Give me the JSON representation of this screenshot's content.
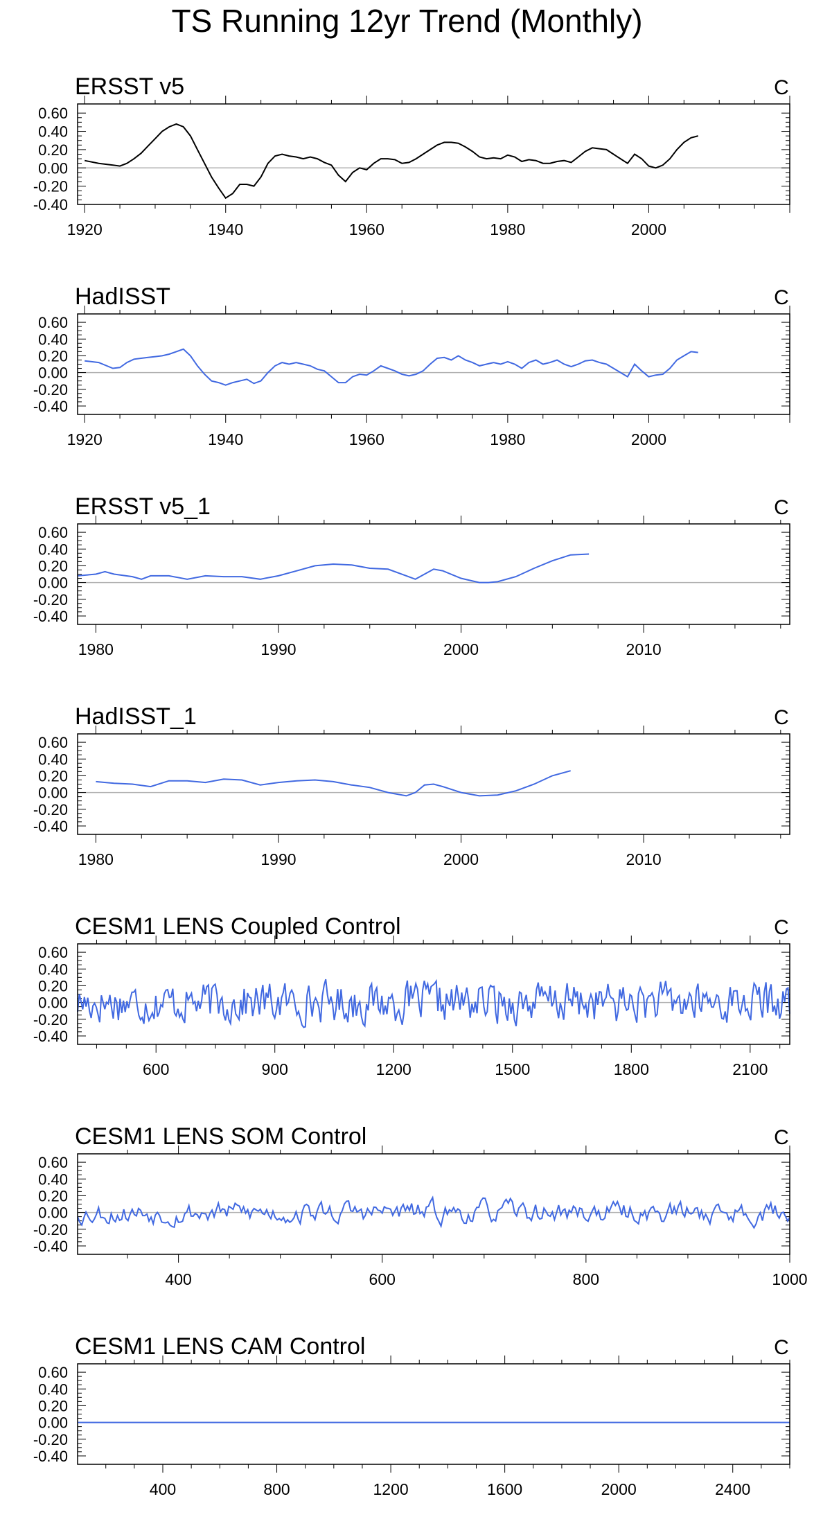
{
  "title": "TS Running 12yr Trend (Monthly)",
  "colors": {
    "obs_line": "#000000",
    "model_line": "#4169e1",
    "zero_line": "#b0b0b0",
    "axis": "#000000"
  },
  "chart_data": [
    {
      "type": "line",
      "title": "ERSST v5",
      "units": "C",
      "xlim": [
        1919,
        2020
      ],
      "ylim": [
        -0.4,
        0.7
      ],
      "xticks": [
        1920,
        1940,
        1960,
        1980,
        2000
      ],
      "yticks": [
        "0.60",
        "0.40",
        "0.20",
        "0.00",
        "-0.20",
        "-0.40"
      ],
      "line_color": "#000000",
      "x": [
        1920,
        1922,
        1924,
        1925,
        1926,
        1927,
        1928,
        1929,
        1930,
        1931,
        1932,
        1933,
        1934,
        1935,
        1936,
        1937,
        1938,
        1939,
        1940,
        1941,
        1942,
        1943,
        1944,
        1945,
        1946,
        1947,
        1948,
        1949,
        1950,
        1951,
        1952,
        1953,
        1954,
        1955,
        1956,
        1957,
        1958,
        1959,
        1960,
        1961,
        1962,
        1963,
        1964,
        1965,
        1966,
        1967,
        1968,
        1969,
        1970,
        1971,
        1972,
        1973,
        1974,
        1975,
        1976,
        1977,
        1978,
        1979,
        1980,
        1981,
        1982,
        1983,
        1984,
        1985,
        1986,
        1987,
        1988,
        1989,
        1990,
        1991,
        1992,
        1993,
        1994,
        1995,
        1996,
        1997,
        1998,
        1999,
        2000,
        2001,
        2002,
        2003,
        2004,
        2005,
        2006,
        2007
      ],
      "y": [
        0.08,
        0.05,
        0.03,
        0.02,
        0.05,
        0.1,
        0.16,
        0.24,
        0.32,
        0.4,
        0.45,
        0.48,
        0.45,
        0.35,
        0.2,
        0.05,
        -0.1,
        -0.22,
        -0.33,
        -0.28,
        -0.18,
        -0.18,
        -0.2,
        -0.1,
        0.05,
        0.13,
        0.15,
        0.13,
        0.12,
        0.1,
        0.12,
        0.1,
        0.06,
        0.03,
        -0.08,
        -0.15,
        -0.05,
        0.0,
        -0.02,
        0.05,
        0.1,
        0.1,
        0.09,
        0.05,
        0.06,
        0.1,
        0.15,
        0.2,
        0.25,
        0.28,
        0.28,
        0.27,
        0.23,
        0.18,
        0.12,
        0.1,
        0.11,
        0.1,
        0.14,
        0.12,
        0.07,
        0.09,
        0.08,
        0.05,
        0.05,
        0.07,
        0.08,
        0.06,
        0.12,
        0.18,
        0.22,
        0.21,
        0.2,
        0.15,
        0.1,
        0.05,
        0.15,
        0.1,
        0.02,
        0.0,
        0.03,
        0.1,
        0.2,
        0.28,
        0.33,
        0.35
      ]
    },
    {
      "type": "line",
      "title": "HadISST",
      "units": "C",
      "xlim": [
        1919,
        2020
      ],
      "ylim": [
        -0.5,
        0.7
      ],
      "xticks": [
        1920,
        1940,
        1960,
        1980,
        2000
      ],
      "yticks": [
        "0.60",
        "0.40",
        "0.20",
        "0.00",
        "-0.20",
        "-0.40"
      ],
      "line_color": "#4169e1",
      "x": [
        1920,
        1922,
        1924,
        1925,
        1926,
        1927,
        1928,
        1929,
        1930,
        1931,
        1932,
        1933,
        1934,
        1935,
        1936,
        1937,
        1938,
        1939,
        1940,
        1941,
        1942,
        1943,
        1944,
        1945,
        1946,
        1947,
        1948,
        1949,
        1950,
        1951,
        1952,
        1953,
        1954,
        1955,
        1956,
        1957,
        1958,
        1959,
        1960,
        1961,
        1962,
        1963,
        1964,
        1965,
        1966,
        1967,
        1968,
        1969,
        1970,
        1971,
        1972,
        1973,
        1974,
        1975,
        1976,
        1977,
        1978,
        1979,
        1980,
        1981,
        1982,
        1983,
        1984,
        1985,
        1986,
        1987,
        1988,
        1989,
        1990,
        1991,
        1992,
        1993,
        1994,
        1995,
        1996,
        1997,
        1998,
        1999,
        2000,
        2001,
        2002,
        2003,
        2004,
        2005,
        2006,
        2007
      ],
      "y": [
        0.14,
        0.12,
        0.05,
        0.06,
        0.12,
        0.16,
        0.17,
        0.18,
        0.19,
        0.2,
        0.22,
        0.25,
        0.28,
        0.2,
        0.08,
        -0.02,
        -0.1,
        -0.12,
        -0.15,
        -0.12,
        -0.1,
        -0.08,
        -0.13,
        -0.1,
        0.0,
        0.08,
        0.12,
        0.1,
        0.12,
        0.1,
        0.08,
        0.04,
        0.02,
        -0.05,
        -0.12,
        -0.12,
        -0.05,
        -0.02,
        -0.03,
        0.02,
        0.08,
        0.05,
        0.02,
        -0.02,
        -0.04,
        -0.02,
        0.02,
        0.1,
        0.17,
        0.18,
        0.15,
        0.2,
        0.15,
        0.12,
        0.08,
        0.1,
        0.12,
        0.1,
        0.13,
        0.1,
        0.05,
        0.12,
        0.15,
        0.1,
        0.12,
        0.15,
        0.1,
        0.07,
        0.1,
        0.14,
        0.15,
        0.12,
        0.1,
        0.05,
        0.0,
        -0.05,
        0.1,
        0.02,
        -0.05,
        -0.03,
        -0.02,
        0.05,
        0.15,
        0.2,
        0.25,
        0.24
      ]
    },
    {
      "type": "line",
      "title": "ERSST v5_1",
      "units": "C",
      "xlim": [
        1979,
        2018
      ],
      "ylim": [
        -0.5,
        0.7
      ],
      "xticks": [
        1980,
        1990,
        2000,
        2010
      ],
      "yticks": [
        "0.60",
        "0.40",
        "0.20",
        "0.00",
        "-0.20",
        "-0.40"
      ],
      "line_color": "#4169e1",
      "x": [
        1979,
        1980,
        1980.5,
        1981,
        1982,
        1982.5,
        1983,
        1984,
        1985,
        1986,
        1987,
        1988,
        1989,
        1990,
        1991,
        1992,
        1993,
        1994,
        1995,
        1996,
        1997,
        1997.5,
        1998,
        1998.5,
        1999,
        2000,
        2001,
        2001.5,
        2002,
        2003,
        2004,
        2005,
        2006,
        2007
      ],
      "y": [
        0.08,
        0.1,
        0.13,
        0.1,
        0.07,
        0.04,
        0.08,
        0.08,
        0.04,
        0.08,
        0.07,
        0.07,
        0.04,
        0.08,
        0.14,
        0.2,
        0.22,
        0.21,
        0.17,
        0.16,
        0.08,
        0.04,
        0.1,
        0.16,
        0.14,
        0.05,
        0.0,
        0.0,
        0.01,
        0.07,
        0.17,
        0.26,
        0.33,
        0.34
      ]
    },
    {
      "type": "line",
      "title": "HadISST_1",
      "units": "C",
      "xlim": [
        1979,
        2018
      ],
      "ylim": [
        -0.5,
        0.7
      ],
      "xticks": [
        1980,
        1990,
        2000,
        2010
      ],
      "yticks": [
        "0.60",
        "0.40",
        "0.20",
        "0.00",
        "-0.20",
        "-0.40"
      ],
      "line_color": "#4169e1",
      "x": [
        1980,
        1981,
        1982,
        1983,
        1984,
        1985,
        1986,
        1987,
        1988,
        1989,
        1990,
        1991,
        1992,
        1993,
        1994,
        1995,
        1996,
        1997,
        1997.5,
        1998,
        1998.5,
        1999,
        2000,
        2001,
        2002,
        2003,
        2004,
        2005,
        2006
      ],
      "y": [
        0.13,
        0.11,
        0.1,
        0.07,
        0.14,
        0.14,
        0.12,
        0.16,
        0.15,
        0.09,
        0.12,
        0.14,
        0.15,
        0.13,
        0.09,
        0.06,
        0.0,
        -0.04,
        0.0,
        0.09,
        0.1,
        0.07,
        0.0,
        -0.04,
        -0.03,
        0.02,
        0.1,
        0.2,
        0.26
      ]
    },
    {
      "type": "line",
      "title": "CESM1 LENS Coupled Control",
      "units": "C",
      "xlim": [
        402,
        2200
      ],
      "ylim": [
        -0.5,
        0.7
      ],
      "xticks": [
        600,
        900,
        1200,
        1500,
        1800,
        2100
      ],
      "yticks": [
        "0.60",
        "0.40",
        "0.20",
        "0.00",
        "-0.20",
        "-0.40"
      ],
      "line_color": "#4169e1",
      "seed": 17,
      "noise": {
        "n": 420,
        "amp": 0.13,
        "smooth": 0.35
      }
    },
    {
      "type": "line",
      "title": "CESM1 LENS SOM Control",
      "units": "C",
      "xlim": [
        301,
        1000
      ],
      "ylim": [
        -0.5,
        0.7
      ],
      "xticks": [
        400,
        600,
        800,
        1000
      ],
      "yticks": [
        "0.60",
        "0.40",
        "0.20",
        "0.00",
        "-0.20",
        "-0.40"
      ],
      "line_color": "#4169e1",
      "seed": 53,
      "noise": {
        "n": 340,
        "amp": 0.1,
        "smooth": 0.6
      }
    },
    {
      "type": "line",
      "title": "CESM1 LENS CAM Control",
      "units": "C",
      "xlim": [
        101,
        2600
      ],
      "ylim": [
        -0.5,
        0.7
      ],
      "xticks": [
        400,
        800,
        1200,
        1600,
        2000,
        2400
      ],
      "yticks": [
        "0.60",
        "0.40",
        "0.20",
        "0.00",
        "-0.20",
        "-0.40"
      ],
      "line_color": "#4169e1",
      "x": [
        101,
        2600
      ],
      "y": [
        0.0,
        0.0
      ]
    }
  ]
}
